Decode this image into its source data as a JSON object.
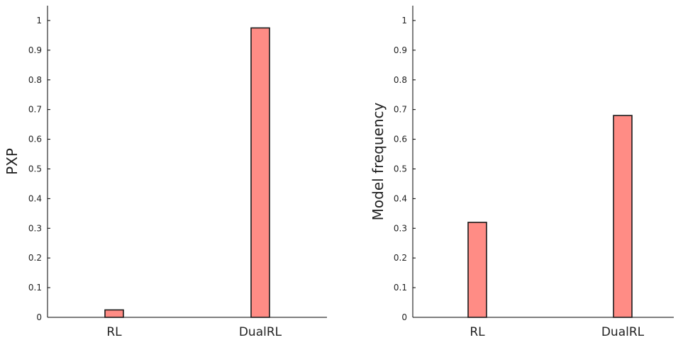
{
  "chart_data": [
    {
      "type": "bar",
      "categories": [
        "RL",
        "DualRL"
      ],
      "values": [
        0.025,
        0.975
      ],
      "ylabel": "PXP",
      "xlabel": "",
      "ylim": [
        0,
        1.05
      ],
      "yticks": [
        "0",
        "0.1",
        "0.2",
        "0.3",
        "0.4",
        "0.5",
        "0.6",
        "0.7",
        "0.8",
        "0.9",
        "1"
      ],
      "bar_color": "#ff8c85",
      "grid": false
    },
    {
      "type": "bar",
      "categories": [
        "RL",
        "DualRL"
      ],
      "values": [
        0.32,
        0.68
      ],
      "ylabel": "Model frequency",
      "xlabel": "",
      "ylim": [
        0,
        1.05
      ],
      "yticks": [
        "0",
        "0.1",
        "0.2",
        "0.3",
        "0.4",
        "0.5",
        "0.6",
        "0.7",
        "0.8",
        "0.9",
        "1"
      ],
      "bar_color": "#ff8c85",
      "grid": false
    }
  ]
}
